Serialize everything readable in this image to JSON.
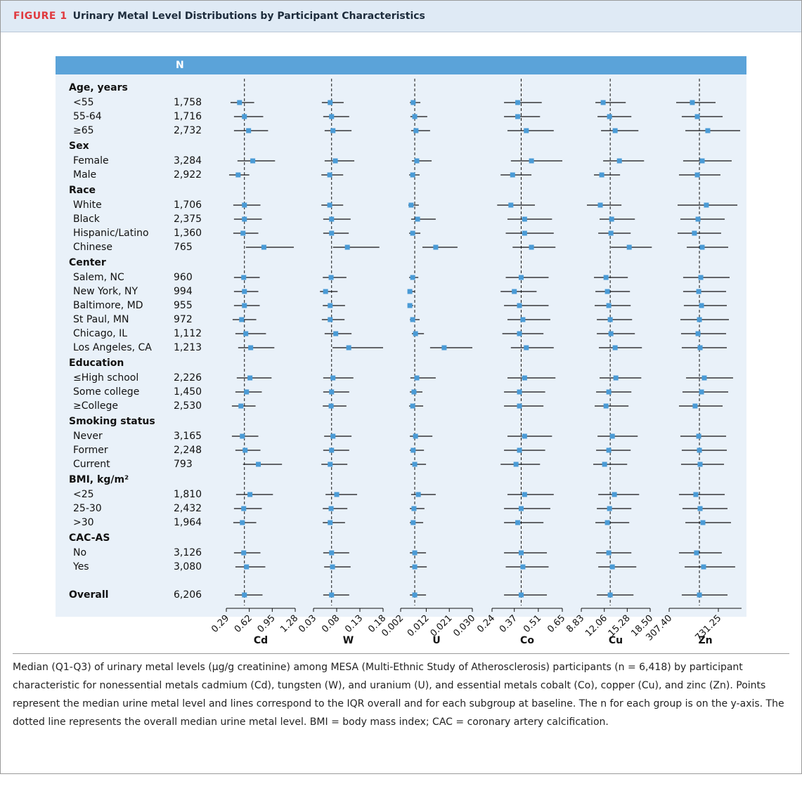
{
  "header": {
    "figure_label": "FIGURE 1",
    "title": "Urinary Metal Level Distributions by Participant Characteristics"
  },
  "chart_data": {
    "type": "forest",
    "n_header": "N",
    "color": "#4a9bd6",
    "groups": [
      {
        "title": "Age, years",
        "rows": [
          {
            "label": "<55",
            "n": "1,758"
          },
          {
            "label": "55-64",
            "n": "1,716"
          },
          {
            "label": "≥65",
            "n": "2,732"
          }
        ]
      },
      {
        "title": "Sex",
        "rows": [
          {
            "label": "Female",
            "n": "3,284"
          },
          {
            "label": "Male",
            "n": "2,922"
          }
        ]
      },
      {
        "title": "Race",
        "rows": [
          {
            "label": "White",
            "n": "1,706"
          },
          {
            "label": "Black",
            "n": "2,375"
          },
          {
            "label": "Hispanic/Latino",
            "n": "1,360"
          },
          {
            "label": "Chinese",
            "n": "765"
          }
        ]
      },
      {
        "title": "Center",
        "rows": [
          {
            "label": "Salem, NC",
            "n": "960"
          },
          {
            "label": "New York, NY",
            "n": "994"
          },
          {
            "label": "Baltimore, MD",
            "n": "955"
          },
          {
            "label": "St Paul, MN",
            "n": "972"
          },
          {
            "label": "Chicago, IL",
            "n": "1,112"
          },
          {
            "label": "Los Angeles, CA",
            "n": "1,213"
          }
        ]
      },
      {
        "title": "Education",
        "rows": [
          {
            "label": "≤High school",
            "n": "2,226"
          },
          {
            "label": "Some college",
            "n": "1,450"
          },
          {
            "label": "≥College",
            "n": "2,530"
          }
        ]
      },
      {
        "title": "Smoking status",
        "rows": [
          {
            "label": "Never",
            "n": "3,165"
          },
          {
            "label": "Former",
            "n": "2,248"
          },
          {
            "label": "Current",
            "n": "793"
          }
        ]
      },
      {
        "title": "BMI, kg/m²",
        "rows": [
          {
            "label": "<25",
            "n": "1,810"
          },
          {
            "label": "25-30",
            "n": "2,432"
          },
          {
            "label": ">30",
            "n": "1,964"
          }
        ]
      },
      {
        "title": "CAC-AS",
        "rows": [
          {
            "label": "No",
            "n": "3,126"
          },
          {
            "label": "Yes",
            "n": "3,080"
          }
        ]
      }
    ],
    "overall": {
      "label": "Overall",
      "n": "6,206"
    },
    "panels": [
      {
        "name": "Cd",
        "xlim": [
          0.29,
          1.28
        ],
        "xticks": [
          0.29,
          0.62,
          0.95,
          1.28
        ],
        "median": [
          0.48,
          0.55,
          0.61,
          0.67,
          0.46,
          0.55,
          0.55,
          0.53,
          0.83,
          0.54,
          0.55,
          0.55,
          0.51,
          0.57,
          0.64,
          0.63,
          0.58,
          0.5,
          0.52,
          0.56,
          0.75,
          0.63,
          0.54,
          0.52,
          0.54,
          0.58,
          0.55
        ],
        "q1": [
          0.35,
          0.4,
          0.4,
          0.45,
          0.33,
          0.39,
          0.4,
          0.39,
          0.57,
          0.4,
          0.4,
          0.4,
          0.38,
          0.42,
          0.46,
          0.44,
          0.42,
          0.37,
          0.37,
          0.42,
          0.53,
          0.43,
          0.4,
          0.39,
          0.4,
          0.42,
          0.41
        ],
        "q3": [
          0.69,
          0.82,
          0.89,
          0.99,
          0.62,
          0.78,
          0.8,
          0.75,
          1.26,
          0.77,
          0.75,
          0.77,
          0.72,
          0.86,
          0.98,
          0.94,
          0.8,
          0.71,
          0.75,
          0.78,
          1.09,
          0.96,
          0.8,
          0.72,
          0.78,
          0.85,
          0.81
        ]
      },
      {
        "name": "W",
        "xlim": [
          0.03,
          0.18
        ],
        "xticks": [
          0.03,
          0.08,
          0.13,
          0.18
        ],
        "median": [
          0.066,
          0.069,
          0.072,
          0.077,
          0.065,
          0.065,
          0.069,
          0.069,
          0.103,
          0.068,
          0.056,
          0.066,
          0.066,
          0.078,
          0.106,
          0.072,
          0.069,
          0.068,
          0.072,
          0.069,
          0.066,
          0.08,
          0.068,
          0.066,
          0.069,
          0.071,
          0.069
        ],
        "q1": [
          0.048,
          0.051,
          0.054,
          0.054,
          0.047,
          0.047,
          0.051,
          0.051,
          0.072,
          0.05,
          0.044,
          0.05,
          0.048,
          0.054,
          0.071,
          0.051,
          0.051,
          0.05,
          0.053,
          0.051,
          0.047,
          0.056,
          0.05,
          0.05,
          0.051,
          0.053,
          0.051
        ],
        "q3": [
          0.095,
          0.107,
          0.112,
          0.118,
          0.094,
          0.094,
          0.11,
          0.106,
          0.172,
          0.101,
          0.082,
          0.098,
          0.097,
          0.112,
          0.18,
          0.116,
          0.107,
          0.101,
          0.112,
          0.107,
          0.103,
          0.124,
          0.103,
          0.098,
          0.107,
          0.11,
          0.107
        ]
      },
      {
        "name": "U",
        "xlim": [
          0.002,
          0.03
        ],
        "xticks": [
          0.002,
          0.012,
          0.021,
          {
            "value": 0.03,
            "label": "0.030"
          }
        ],
        "median": [
          0.0069,
          0.0075,
          0.008,
          0.0083,
          0.0067,
          0.0061,
          0.0086,
          0.0067,
          0.0157,
          0.0067,
          0.0056,
          0.0056,
          0.0067,
          0.0078,
          0.019,
          0.0083,
          0.0072,
          0.0067,
          0.0078,
          0.0069,
          0.0075,
          0.0089,
          0.0072,
          0.0069,
          0.0075,
          0.0075,
          0.0075
        ],
        "q1": [
          0.0056,
          0.0058,
          0.0061,
          0.0064,
          0.0053,
          0.005,
          0.0061,
          0.0053,
          0.0105,
          0.0053,
          0.0047,
          0.0047,
          0.0056,
          0.0064,
          0.0135,
          0.0058,
          0.0056,
          0.0053,
          0.0056,
          0.0056,
          0.0058,
          0.0061,
          0.0056,
          0.0056,
          0.0056,
          0.0056,
          0.0056
        ],
        "q3": [
          0.0097,
          0.0124,
          0.0135,
          0.0141,
          0.0094,
          0.0091,
          0.0157,
          0.0097,
          0.0242,
          0.0089,
          0.0075,
          0.0069,
          0.0094,
          0.0111,
          0.03,
          0.0157,
          0.0105,
          0.0108,
          0.0144,
          0.0111,
          0.0119,
          0.0157,
          0.0113,
          0.0108,
          0.0119,
          0.0122,
          0.0119
        ]
      },
      {
        "name": "Co",
        "xlim": [
          0.24,
          0.65
        ],
        "xticks": [
          0.24,
          0.37,
          0.51,
          0.65
        ],
        "median": [
          0.39,
          0.39,
          0.44,
          0.47,
          0.36,
          0.35,
          0.43,
          0.43,
          0.47,
          0.41,
          0.37,
          0.4,
          0.42,
          0.4,
          0.44,
          0.43,
          0.4,
          0.4,
          0.43,
          0.4,
          0.38,
          0.43,
          0.41,
          0.39,
          0.41,
          0.42,
          0.41
        ],
        "q1": [
          0.31,
          0.31,
          0.33,
          0.35,
          0.29,
          0.27,
          0.33,
          0.32,
          0.36,
          0.32,
          0.29,
          0.31,
          0.33,
          0.3,
          0.35,
          0.33,
          0.31,
          0.31,
          0.33,
          0.31,
          0.29,
          0.33,
          0.31,
          0.31,
          0.31,
          0.32,
          0.31
        ],
        "q3": [
          0.53,
          0.52,
          0.6,
          0.65,
          0.47,
          0.49,
          0.59,
          0.6,
          0.61,
          0.57,
          0.5,
          0.57,
          0.58,
          0.54,
          0.6,
          0.61,
          0.55,
          0.54,
          0.59,
          0.55,
          0.52,
          0.6,
          0.58,
          0.54,
          0.56,
          0.57,
          0.56
        ]
      },
      {
        "name": "Cu",
        "xlim": [
          8.83,
          18.5
        ],
        "xticks": [
          8.83,
          12.06,
          15.28,
          {
            "value": 18.5,
            "label": "18.50"
          }
        ],
        "median": [
          11.9,
          12.79,
          13.58,
          14.18,
          11.7,
          11.5,
          13.09,
          12.99,
          15.56,
          12.3,
          12.49,
          12.69,
          12.89,
          12.99,
          13.58,
          13.68,
          12.69,
          12.3,
          13.19,
          12.69,
          12.1,
          13.48,
          12.79,
          12.49,
          12.69,
          13.19,
          12.89
        ],
        "q1": [
          10.81,
          11.11,
          11.6,
          11.9,
          10.61,
          9.62,
          11.4,
          11.21,
          12.99,
          10.61,
          10.81,
          10.71,
          11.01,
          11.01,
          11.3,
          11.4,
          10.91,
          10.71,
          11.11,
          10.91,
          10.51,
          11.21,
          11.01,
          10.81,
          10.91,
          11.21,
          11.01
        ],
        "q3": [
          15.07,
          15.86,
          16.85,
          17.64,
          14.27,
          14.47,
          16.35,
          15.76,
          18.73,
          15.36,
          15.66,
          15.76,
          15.96,
          16.35,
          17.34,
          17.25,
          15.86,
          15.46,
          16.75,
          15.76,
          15.27,
          16.95,
          15.86,
          15.56,
          15.86,
          16.55,
          16.16
        ]
      },
      {
        "name": "Zn",
        "xlim": [
          307.4,
          931
        ],
        "xticks": [
          {
            "value": 307.4,
            "label": "307.40"
          },
          731.25
        ],
        "median": [
          507,
          550,
          640,
          592,
          550,
          628,
          556,
          525,
          592,
          580,
          562,
          586,
          568,
          556,
          574,
          610,
          586,
          531,
          562,
          568,
          574,
          537,
          574,
          598,
          543,
          604,
          568
        ],
        "q1": [
          368,
          416,
          447,
          428,
          392,
          380,
          404,
          380,
          459,
          428,
          428,
          434,
          404,
          410,
          416,
          453,
          422,
          392,
          404,
          416,
          410,
          392,
          422,
          447,
          392,
          441,
          416
        ],
        "q3": [
          707,
          768,
          919,
          846,
          749,
          895,
          786,
          755,
          816,
          828,
          798,
          804,
          822,
          798,
          804,
          858,
          816,
          768,
          798,
          804,
          780,
          786,
          810,
          840,
          761,
          876,
          810
        ]
      }
    ]
  },
  "caption": "Median (Q1-Q3) of urinary metal levels (μg/g creatinine) among MESA (Multi-Ethnic Study of Atherosclerosis) participants (n = 6,418) by participant characteristic for nonessential metals cadmium (Cd), tungsten (W), and uranium (U), and essential metals cobalt (Co), copper (Cu), and zinc (Zn). Points represent the median urine metal level and lines correspond to the IQR overall and for each subgroup at baseline. The n for each group is on the y-axis. The dotted line represents the overall median urine metal level. BMI = body mass index; CAC = coronary artery calcification."
}
